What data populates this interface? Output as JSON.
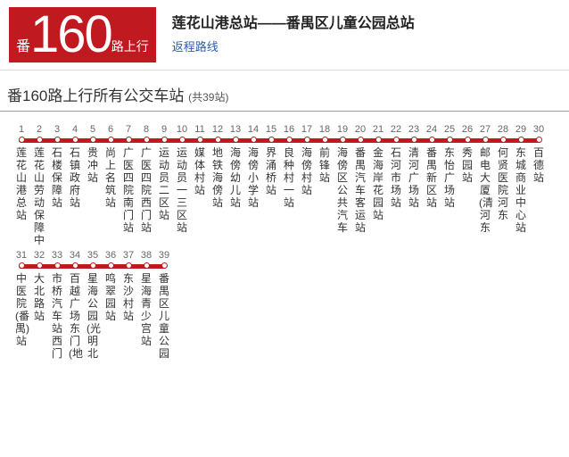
{
  "brand_color": "#c01920",
  "link_color": "#2a5db0",
  "badge": {
    "pre": "番",
    "num": "160",
    "suf": "路上行"
  },
  "route_title": "莲花山港总站——番禺区儿童公园总站",
  "return_link": "返程路线",
  "section_title": "番160路上行所有公交车站",
  "station_count_label": "(共39站)",
  "stops": [
    "莲花山港总站",
    "莲花山劳动保障中",
    "石楼保障站",
    "石镇政府站",
    "贵冲站",
    "尚上名筑站",
    "广医四院南门站",
    "广医四院西门站",
    "运动员二区站",
    "运动员一三区站",
    "媒体村站",
    "地铁海傍站",
    "海傍幼儿站",
    "海傍小学站",
    "界涌桥站",
    "良种村一站",
    "海傍村站",
    "前锋站",
    "海傍区公共汽车",
    "番禺汽车客运站",
    "金海岸花园站",
    "石河市场站",
    "清河广场站",
    "番禺新区站",
    "东怡广场站",
    "秀园站",
    "邮电大厦(清河东",
    "何贤医院河东",
    "东城商业中心站",
    "百德站",
    "中医院(番禺)站",
    "大北路站",
    "市桥汽车站西门",
    "百越广场东门(地",
    "星海公园(光明北",
    "鸣翠园站",
    "东沙村站",
    "星海青少宫站",
    "番禺区儿童公园"
  ],
  "rows": [
    {
      "start": 1,
      "end": 30
    },
    {
      "start": 31,
      "end": 39
    }
  ]
}
